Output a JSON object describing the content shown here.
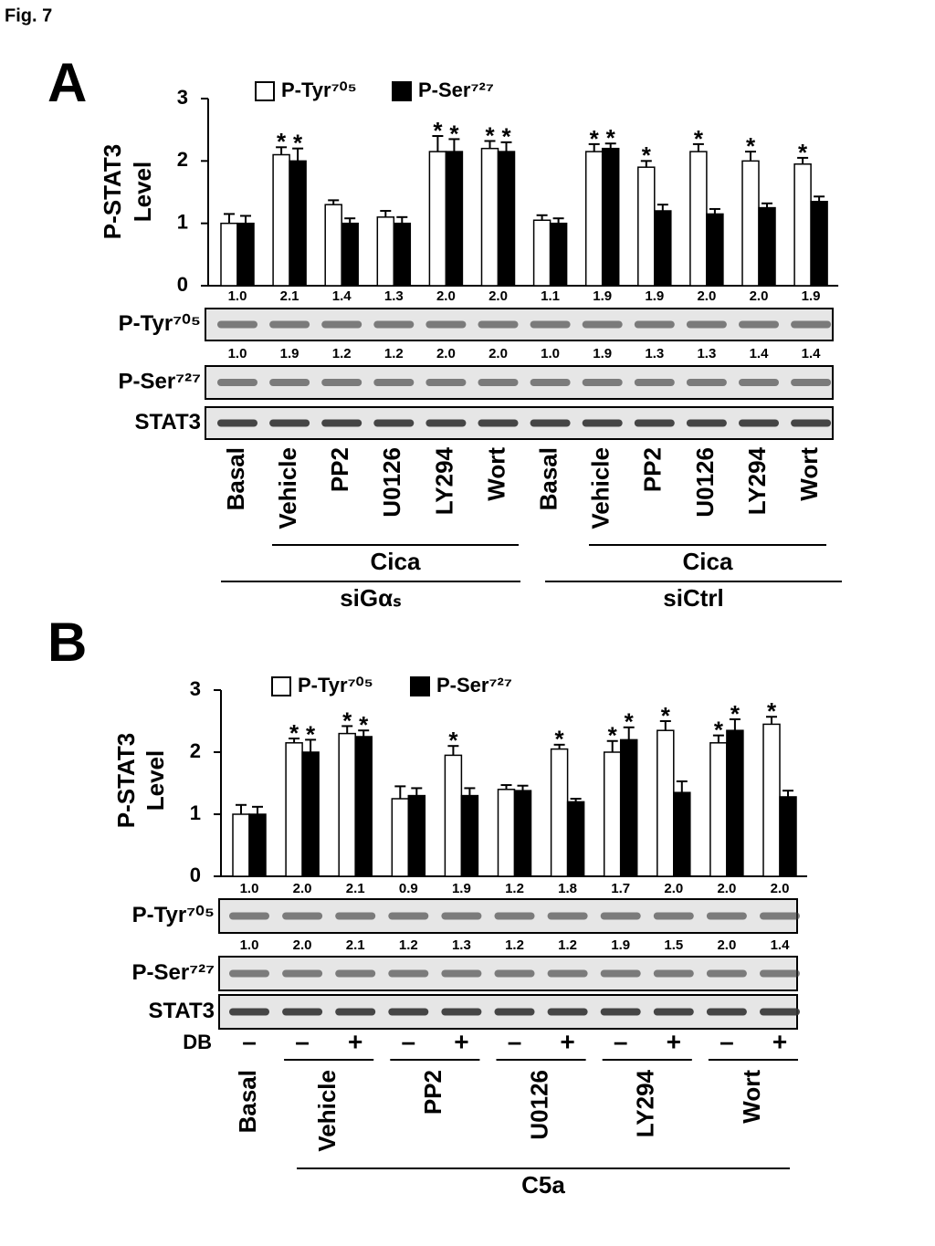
{
  "figure_label": "Fig. 7",
  "chart_data": [
    {
      "type": "bar",
      "panel": "A",
      "ylabel": [
        "P-STAT3",
        "Level"
      ],
      "ylim": [
        0,
        3
      ],
      "yticks": [
        0,
        1,
        2,
        3
      ],
      "categories": [
        "Basal",
        "Vehicle",
        "PP2",
        "U0126",
        "LY294",
        "Wort",
        "Basal",
        "Vehicle",
        "PP2",
        "U0126",
        "LY294",
        "Wort"
      ],
      "series": [
        {
          "name": "P-Tyr⁷⁰⁵",
          "color": "#ffffff",
          "values": [
            1.0,
            2.1,
            1.3,
            1.1,
            2.15,
            2.2,
            1.05,
            2.15,
            1.9,
            2.15,
            2.0,
            1.95
          ],
          "errors": [
            0.15,
            0.12,
            0.07,
            0.1,
            0.25,
            0.12,
            0.08,
            0.12,
            0.1,
            0.12,
            0.15,
            0.1
          ],
          "labels": [
            null,
            "*",
            null,
            null,
            "*",
            "*",
            null,
            "*",
            "*",
            "*",
            "*",
            "*"
          ]
        },
        {
          "name": "P-Ser⁷²⁷",
          "color": "#000000",
          "values": [
            1.0,
            2.0,
            1.0,
            1.0,
            2.15,
            2.15,
            1.0,
            2.2,
            1.2,
            1.15,
            1.25,
            1.35
          ],
          "errors": [
            0.12,
            0.2,
            0.08,
            0.1,
            0.2,
            0.15,
            0.08,
            0.08,
            0.1,
            0.08,
            0.07,
            0.08
          ],
          "labels": [
            null,
            "*",
            null,
            null,
            "*",
            "*",
            null,
            "*",
            null,
            null,
            null,
            null
          ]
        }
      ],
      "blots": [
        {
          "label": "P-Tyr⁷⁰⁵",
          "quant": [
            "1.0",
            "2.1",
            "1.4",
            "1.3",
            "2.0",
            "2.0",
            "1.1",
            "1.9",
            "1.9",
            "2.0",
            "2.0",
            "1.9"
          ]
        },
        {
          "label": "P-Ser⁷²⁷",
          "quant": [
            "1.0",
            "1.9",
            "1.2",
            "1.2",
            "2.0",
            "2.0",
            "1.0",
            "1.9",
            "1.3",
            "1.3",
            "1.4",
            "1.4"
          ]
        },
        {
          "label": "STAT3"
        }
      ],
      "groups": [
        "Cica",
        "Cica",
        "siGαₛ",
        "siCtrl"
      ]
    },
    {
      "type": "bar",
      "panel": "B",
      "ylabel": [
        "P-STAT3",
        "Level"
      ],
      "ylim": [
        0,
        3
      ],
      "yticks": [
        0,
        1,
        2,
        3
      ],
      "categories": [
        "Basal",
        "Vehicle",
        null,
        "PP2",
        null,
        "U0126",
        null,
        "LY294",
        null,
        "Wort",
        null
      ],
      "series": [
        {
          "name": "P-Tyr⁷⁰⁵",
          "color": "#ffffff",
          "values": [
            1.0,
            2.15,
            2.3,
            1.25,
            1.95,
            1.4,
            2.05,
            2.0,
            2.35,
            2.15,
            2.45
          ],
          "errors": [
            0.15,
            0.07,
            0.12,
            0.2,
            0.15,
            0.07,
            0.07,
            0.18,
            0.15,
            0.12,
            0.12
          ],
          "labels": [
            null,
            "*",
            "*",
            null,
            "*",
            null,
            "*",
            "*",
            "*",
            "*",
            "*"
          ]
        },
        {
          "name": "P-Ser⁷²⁷",
          "color": "#000000",
          "values": [
            1.0,
            2.0,
            2.25,
            1.3,
            1.3,
            1.38,
            1.2,
            2.2,
            1.35,
            2.35,
            1.28
          ],
          "errors": [
            0.12,
            0.2,
            0.1,
            0.12,
            0.12,
            0.08,
            0.05,
            0.2,
            0.18,
            0.18,
            0.1
          ],
          "labels": [
            null,
            "*",
            "*",
            null,
            null,
            null,
            null,
            "*",
            null,
            "*",
            null
          ]
        }
      ],
      "blots": [
        {
          "label": "P-Tyr⁷⁰⁵",
          "quant": [
            "1.0",
            "2.0",
            "2.1",
            "0.9",
            "1.9",
            "1.2",
            "1.8",
            "1.7",
            "2.0",
            "2.0",
            "2.0"
          ]
        },
        {
          "label": "P-Ser⁷²⁷",
          "quant": [
            "1.0",
            "2.0",
            "2.1",
            "1.2",
            "1.3",
            "1.2",
            "1.2",
            "1.9",
            "1.5",
            "2.0",
            "1.4"
          ]
        },
        {
          "label": "STAT3"
        }
      ],
      "db_label": "DB",
      "db": [
        "–",
        "–",
        "+",
        "–",
        "+",
        "–",
        "+",
        "–",
        "+",
        "–",
        "+"
      ],
      "groups": [
        "C5a"
      ]
    }
  ]
}
